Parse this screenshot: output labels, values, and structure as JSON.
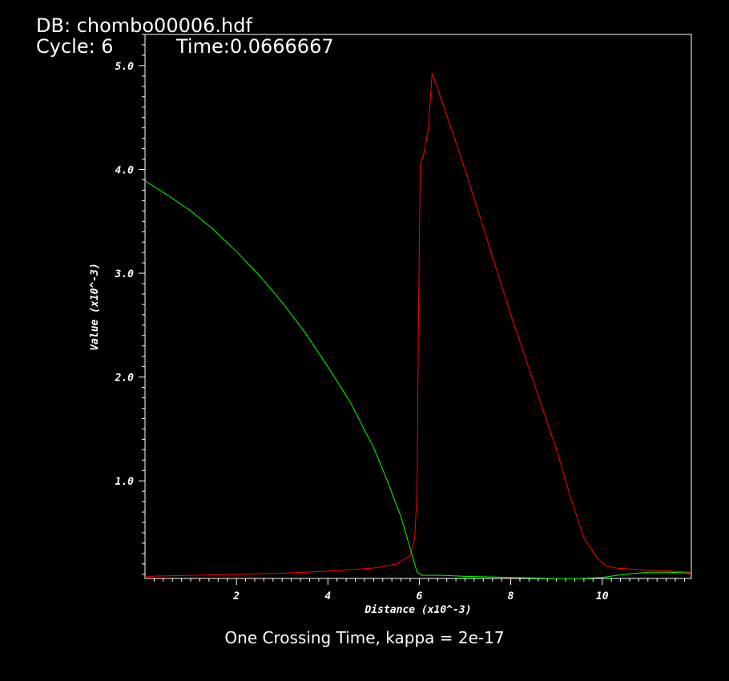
{
  "header": {
    "db_label": "DB: chombo00006.hdf",
    "cycle_label": "Cycle: 6",
    "time_label": "Time:0.0666667"
  },
  "caption": "One Crossing Time, kappa = 2e-17",
  "colors": {
    "background": "#000000",
    "frame": "#ffffff",
    "red_series": "#ff0000",
    "green_series": "#00ff00"
  },
  "chart_data": {
    "type": "line",
    "xlabel": "Distance (x10^-3)",
    "ylabel": "Value (x10^-3)",
    "xlim": [
      0,
      11.95
    ],
    "ylim": [
      0.06,
      5.3
    ],
    "x_ticks": [
      2,
      4,
      6,
      8,
      10
    ],
    "x_tick_labels": [
      "2",
      "4",
      "6",
      "8",
      "10"
    ],
    "y_ticks": [
      1.0,
      2.0,
      3.0,
      4.0,
      5.0
    ],
    "y_tick_labels": [
      "1.0",
      "2.0",
      "3.0",
      "4.0",
      "5.0"
    ],
    "grid": false,
    "legend": "none",
    "series": [
      {
        "color": "#ff0000",
        "x": [
          0,
          1,
          2,
          3,
          4,
          5,
          5.5,
          5.8,
          5.9,
          5.95,
          5.98,
          6.02,
          6.1,
          6.2,
          6.28,
          6.5,
          7,
          7.5,
          8,
          8.5,
          9,
          9.3,
          9.6,
          9.9,
          10.1,
          10.3,
          10.6,
          11,
          11.5,
          11.95
        ],
        "values": [
          0.08,
          0.09,
          0.1,
          0.11,
          0.13,
          0.16,
          0.2,
          0.28,
          0.45,
          0.9,
          2.5,
          4.05,
          4.15,
          4.4,
          4.93,
          4.65,
          4.0,
          3.3,
          2.6,
          1.95,
          1.3,
          0.85,
          0.45,
          0.25,
          0.18,
          0.16,
          0.15,
          0.14,
          0.13,
          0.12
        ]
      },
      {
        "color": "#00ff00",
        "x": [
          0,
          0.5,
          1,
          1.5,
          2,
          2.5,
          3,
          3.5,
          4,
          4.5,
          5,
          5.3,
          5.6,
          5.8,
          5.95,
          6.05,
          6.5,
          7,
          8,
          9,
          9.5,
          10,
          10.5,
          11,
          11.5,
          11.95
        ],
        "values": [
          3.89,
          3.75,
          3.6,
          3.42,
          3.21,
          2.98,
          2.72,
          2.43,
          2.1,
          1.75,
          1.32,
          1.0,
          0.65,
          0.35,
          0.12,
          0.09,
          0.09,
          0.08,
          0.07,
          0.06,
          0.06,
          0.07,
          0.1,
          0.12,
          0.12,
          0.11
        ]
      }
    ]
  }
}
